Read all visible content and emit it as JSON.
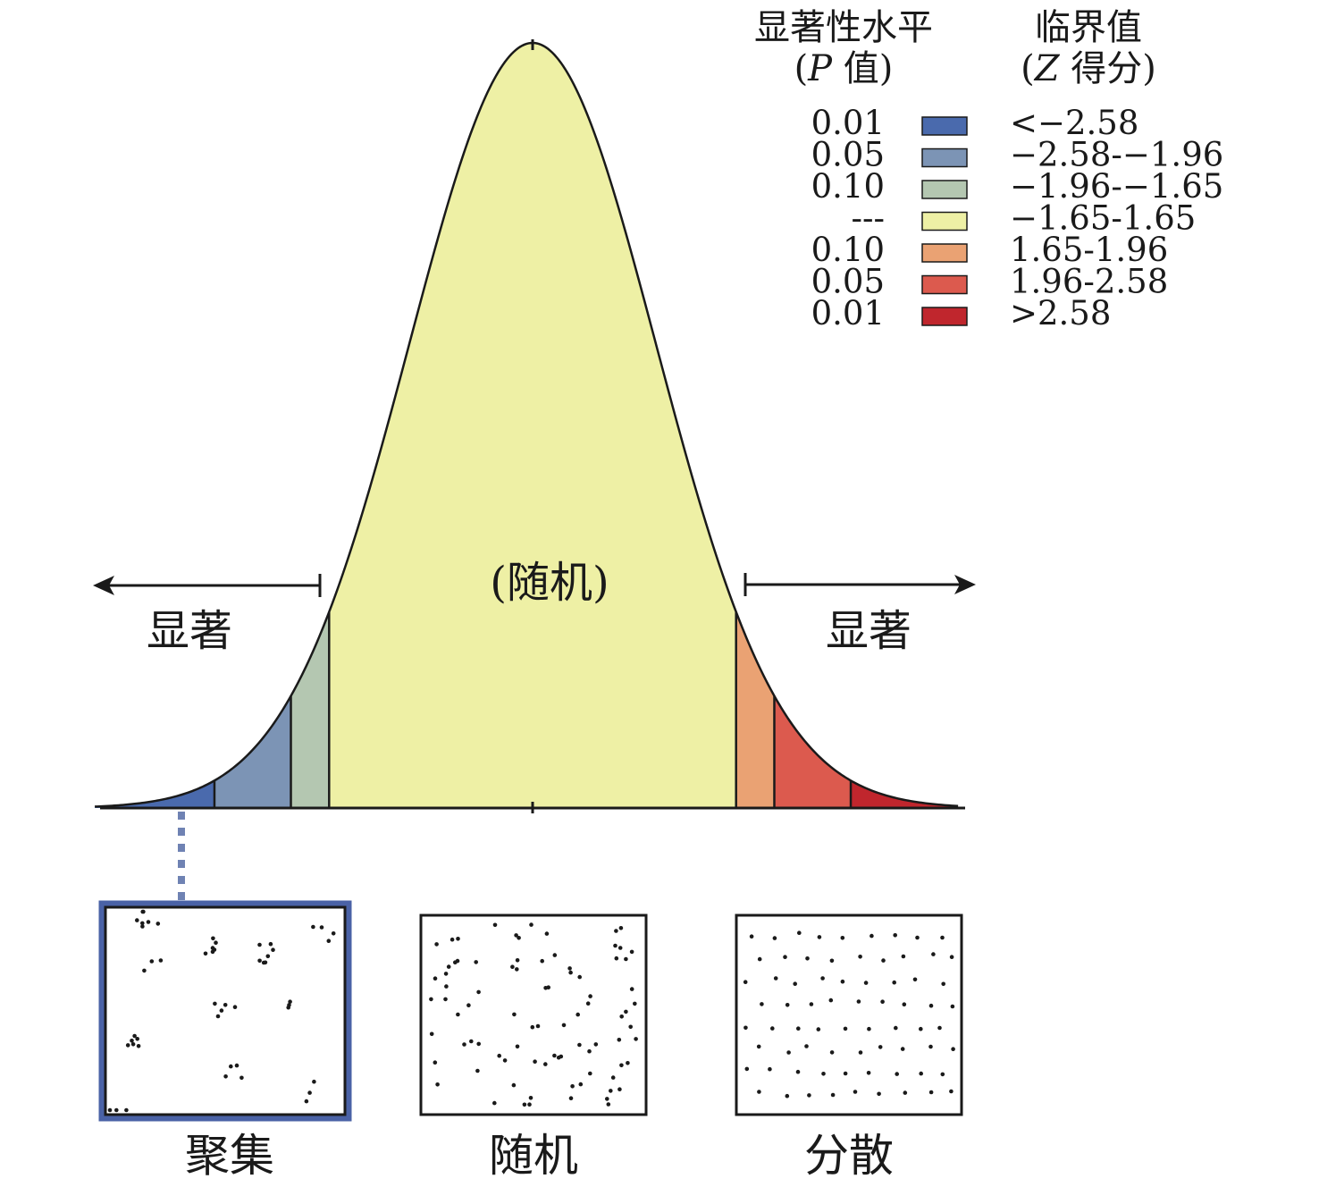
{
  "legend": {
    "header_p_line1": "显著性水平",
    "header_p_line2_prefix": "(",
    "header_p_line2_var": "P",
    "header_p_line2_suffix": " 值)",
    "header_z_line1": "临界值",
    "header_z_line2_prefix": "(",
    "header_z_line2_var": "Z",
    "header_z_line2_suffix": " 得分)",
    "rows": [
      {
        "p": "0.01",
        "z": "<−2.58",
        "color": "#4a6aad"
      },
      {
        "p": "0.05",
        "z": "−2.58-−1.96",
        "color": "#7c94b5"
      },
      {
        "p": "0.10",
        "z": "−1.96-−1.65",
        "color": "#b4c7b1"
      },
      {
        "p": "---",
        "z": "−1.65-1.65",
        "color": "#eef0a5"
      },
      {
        "p": "0.10",
        "z": "1.65-1.96",
        "color": "#eaa273"
      },
      {
        "p": "0.05",
        "z": "1.96-2.58",
        "color": "#dc5a4e"
      },
      {
        "p": "0.01",
        "z": ">2.58",
        "color": "#c0262d"
      }
    ]
  },
  "curve": {
    "z_breaks": [
      -2.58,
      -1.96,
      -1.65,
      1.65,
      1.96,
      2.58
    ],
    "band_colors": [
      "#4a6aad",
      "#7c94b5",
      "#b4c7b1",
      "#eef0a5",
      "#eaa273",
      "#dc5a4e",
      "#c0262d"
    ]
  },
  "labels": {
    "center": "(随机)",
    "left_significant": "显著",
    "right_significant": "显著"
  },
  "panels": [
    {
      "caption": "聚集",
      "highlighted": true,
      "pattern": "clustered"
    },
    {
      "caption": "随机",
      "highlighted": false,
      "pattern": "random"
    },
    {
      "caption": "分散",
      "highlighted": false,
      "pattern": "dispersed"
    }
  ]
}
